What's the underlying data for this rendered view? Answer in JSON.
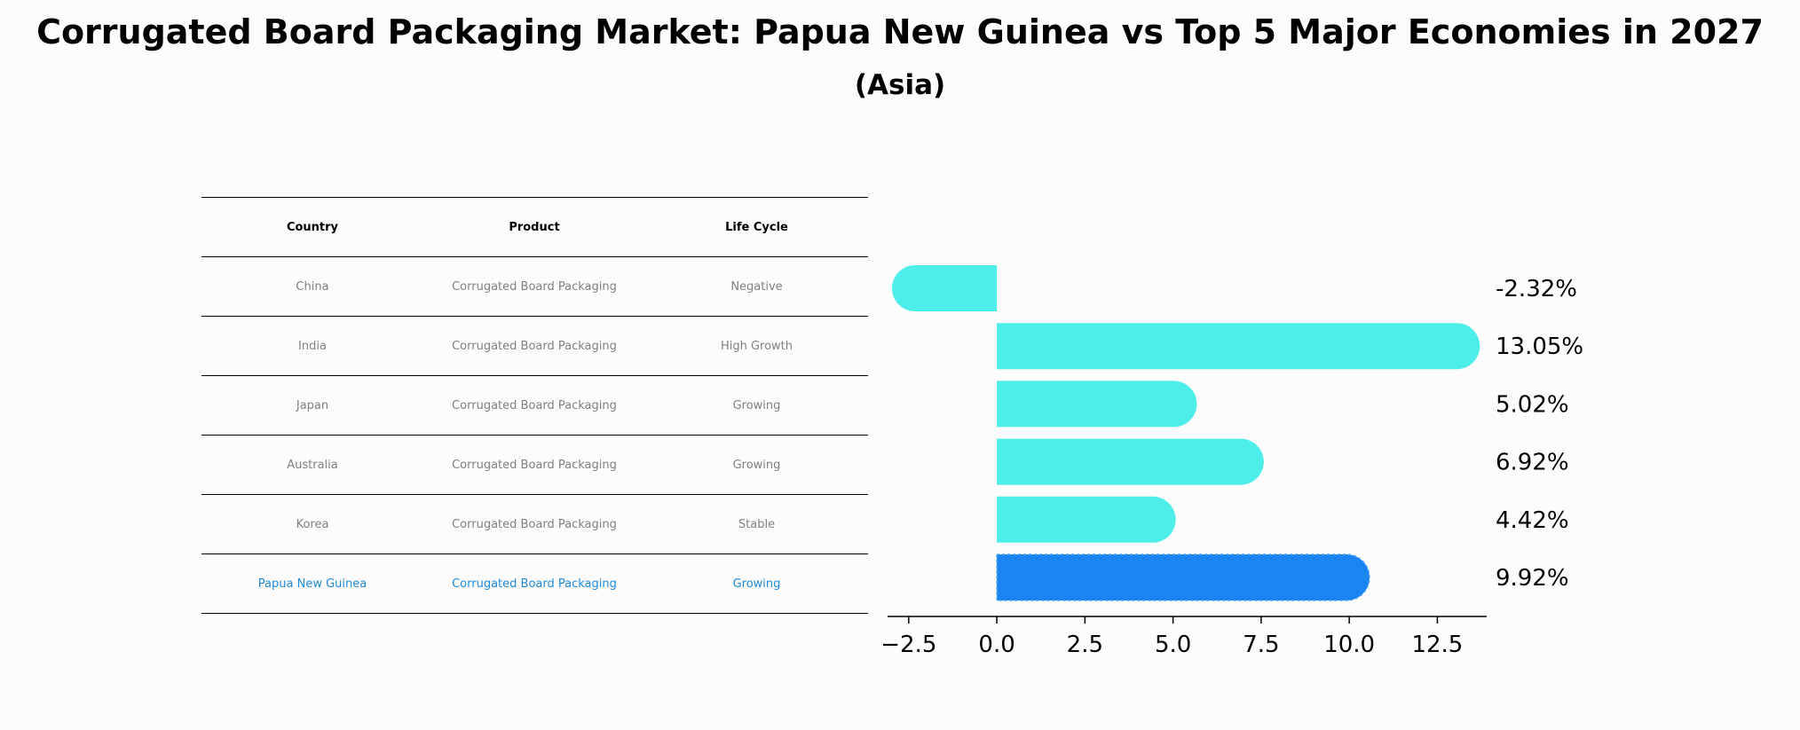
{
  "chart_data": {
    "type": "bar",
    "orientation": "horizontal",
    "title": "Corrugated Board Packaging Market: Papua New Guinea vs Top 5 Major Economies in 2027",
    "subtitle": "(Asia)",
    "categories": [
      "China",
      "India",
      "Japan",
      "Australia",
      "Korea",
      "Papua New Guinea"
    ],
    "values": [
      -2.32,
      13.05,
      5.02,
      6.92,
      4.42,
      9.92
    ],
    "value_labels": [
      "-2.32%",
      "13.05%",
      "5.02%",
      "6.92%",
      "4.42%",
      "9.92%"
    ],
    "xlim": [
      -3.1,
      13.9
    ],
    "xticks": [
      -2.5,
      0.0,
      2.5,
      5.0,
      7.5,
      10.0,
      12.5
    ],
    "xtick_labels": [
      "−2.5",
      "0.0",
      "2.5",
      "5.0",
      "7.5",
      "10.0",
      "12.5"
    ],
    "highlight_index": 5,
    "colors": {
      "bar": "#4deeea",
      "highlight": "#1a84f0"
    }
  },
  "table": {
    "headers": [
      "Country",
      "Product",
      "Life Cycle"
    ],
    "rows": [
      [
        "China",
        "Corrugated Board Packaging",
        "Negative"
      ],
      [
        "India",
        "Corrugated Board Packaging",
        "High Growth"
      ],
      [
        "Japan",
        "Corrugated Board Packaging",
        "Growing"
      ],
      [
        "Australia",
        "Corrugated Board Packaging",
        "Growing"
      ],
      [
        "Korea",
        "Corrugated Board Packaging",
        "Stable"
      ],
      [
        "Papua New Guinea",
        "Corrugated Board Packaging",
        "Growing"
      ]
    ]
  }
}
